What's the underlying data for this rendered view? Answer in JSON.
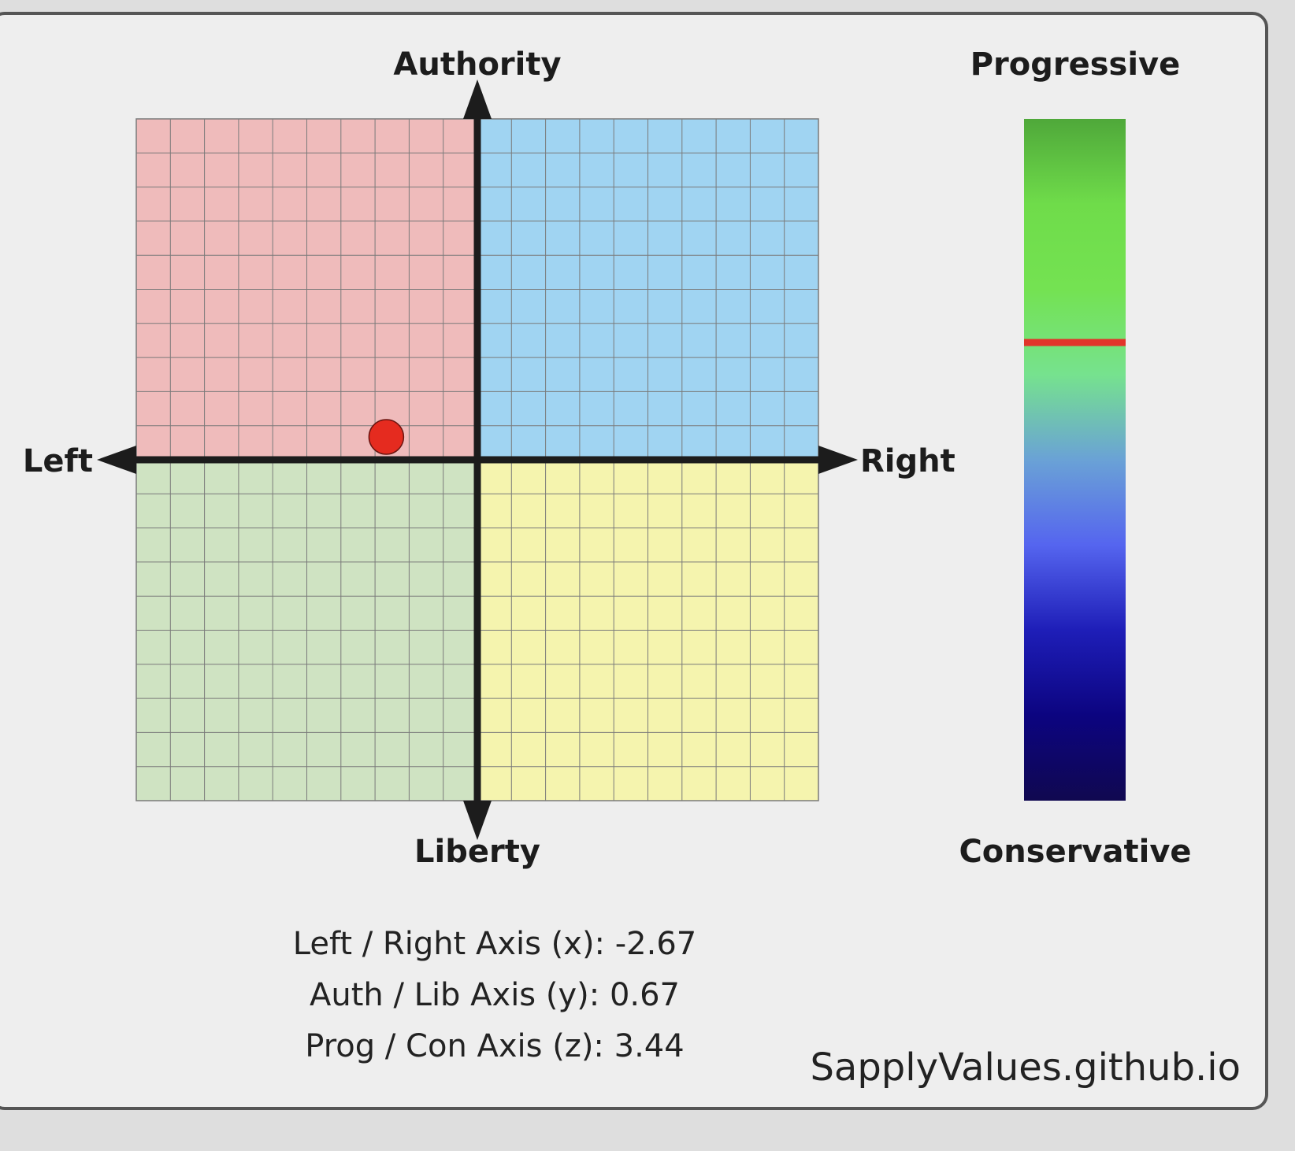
{
  "chart_data": [
    {
      "type": "scatter",
      "xlabel_left": "Left",
      "xlabel_right": "Right",
      "ylabel_top": "Authority",
      "ylabel_bottom": "Liberty",
      "xlim": [
        -10,
        10
      ],
      "ylim": [
        -10,
        10
      ],
      "grid": true,
      "grid_step": 1,
      "quadrant_colors": {
        "auth_left": "#efbbbb",
        "auth_right": "#a0d4f2",
        "lib_left": "#cfe3c2",
        "lib_right": "#f5f4ae"
      },
      "points": [
        {
          "x": -2.67,
          "y": 0.67,
          "color": "#e52b1f"
        }
      ]
    },
    {
      "type": "gauge",
      "label_top": "Progressive",
      "label_bottom": "Conservative",
      "range": [
        -10,
        10
      ],
      "top_value": 10,
      "value": 3.44,
      "marker_color": "#e2352a",
      "gradient": [
        "#4fa83a",
        "#6fdc4a",
        "#74e252",
        "#76e28e",
        "#6aa2d6",
        "#5565ef",
        "#1e1eb8",
        "#0c0480",
        "#100850"
      ]
    }
  ],
  "scores": {
    "x_line": "Left / Right Axis (x): -2.67",
    "y_line": "Auth / Lib Axis (y): 0.67",
    "z_line": "Prog / Con Axis (z): 3.44"
  },
  "site": "SapplyValues.github.io"
}
